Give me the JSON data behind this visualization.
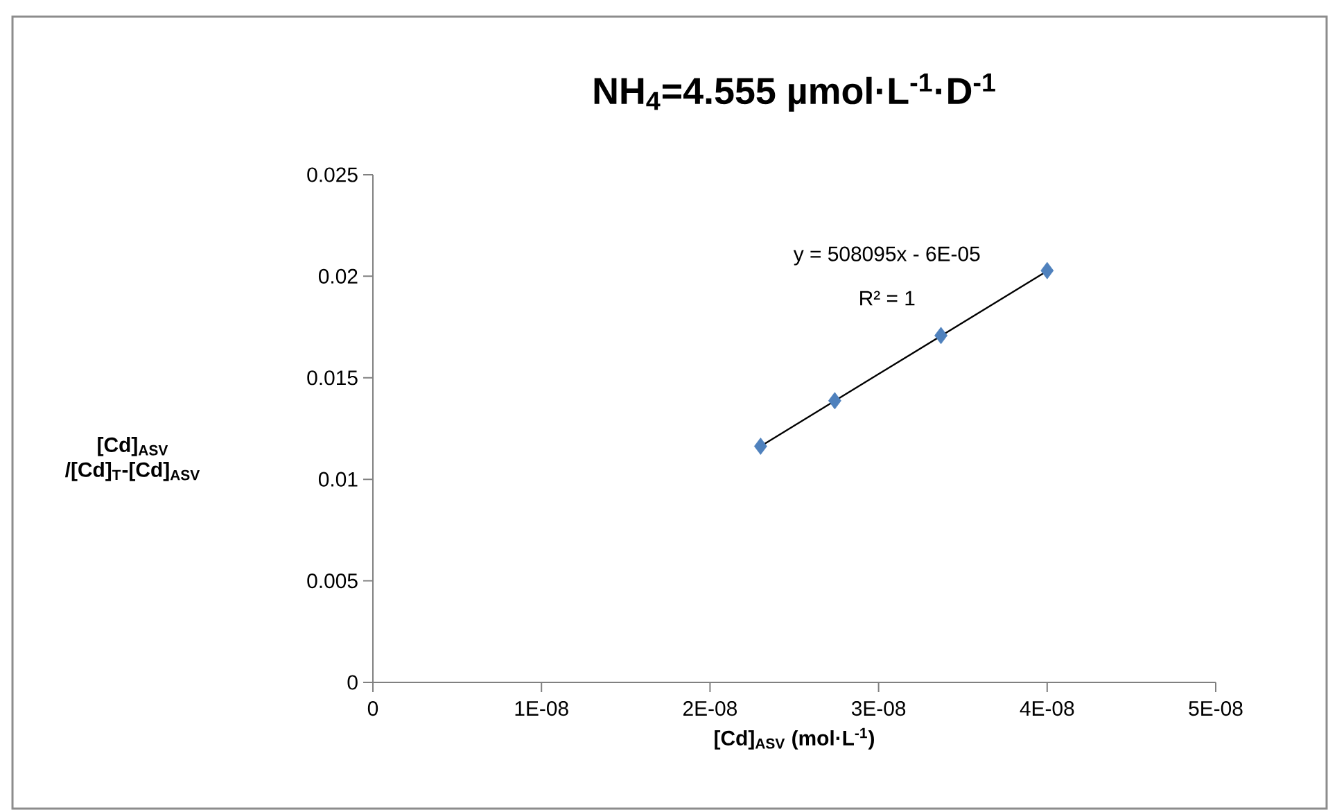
{
  "chart_data": {
    "type": "scatter",
    "title": "NH$_{4}$=4.555 µmol·L$^{-1}$·D$^{-1}$",
    "xlabel": "[Cd]$_{ASV}$ (mol·L$^{-1}$)",
    "ylabel": "[Cd]$_{ASV}$ /[Cd]$_{T}$-[Cd]$_{ASV}$",
    "x": [
      2.3e-08,
      2.74e-08,
      3.37e-08,
      4e-08
    ],
    "series": [
      {
        "color": "#4f81bd",
        "marker": "diamond",
        "values": [
          0.01163,
          0.01387,
          0.01708,
          0.02028
        ]
      },
      {
        "type": "line",
        "color": "#000000",
        "marker": "none",
        "line_style": "solid",
        "x": [
          2.3e-08,
          4e-08
        ],
        "values": [
          0.01163,
          0.02026
        ]
      }
    ],
    "annotations": [
      "y = 508095x - 6E-05",
      "R² = 1"
    ],
    "xlim": [
      0,
      5e-08
    ],
    "xticks": [
      0,
      {
        "value": 1e-08,
        "label": "1E-08"
      },
      {
        "value": 2e-08,
        "label": "2E-08"
      },
      {
        "value": 3e-08,
        "label": "3E-08"
      },
      {
        "value": 4e-08,
        "label": "4E-08"
      },
      {
        "value": 5e-08,
        "label": "5E-08"
      }
    ],
    "ylim": [
      0,
      0.025
    ],
    "yticks": [
      0,
      0.005,
      0.01,
      0.015,
      0.02,
      0.025
    ],
    "grid": false
  }
}
